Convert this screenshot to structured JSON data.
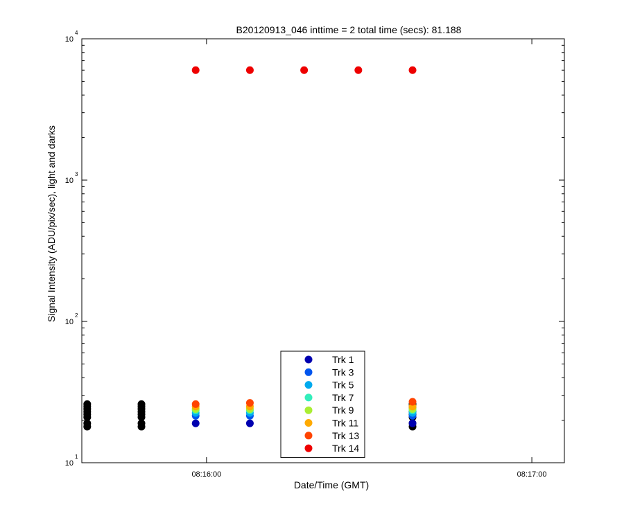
{
  "chart_data": {
    "type": "scatter",
    "title": "B20120913_046 inttime = 2 total time (secs): 81.188",
    "xlabel": "Date/Time (GMT)",
    "ylabel": "Signal Intensity (ADU/pix/sec), light and darks",
    "y_scale": "log",
    "ylim": [
      10,
      10000
    ],
    "xlim": [
      "08:15:37",
      "08:17:06"
    ],
    "grid": false,
    "legend_position": "bottom-center",
    "y_ticks": [
      {
        "value": 10,
        "base": "10",
        "exp": "1"
      },
      {
        "value": 100,
        "base": "10",
        "exp": "2"
      },
      {
        "value": 1000,
        "base": "10",
        "exp": "3"
      },
      {
        "value": 10000,
        "base": "10",
        "exp": "4"
      }
    ],
    "x_ticks": [
      {
        "value": "08:16:00",
        "label": "08:16:00"
      },
      {
        "value": "08:17:00",
        "label": "08:17:00"
      }
    ],
    "dark_series": {
      "color": "#000000",
      "times": [
        "08:15:38",
        "08:15:48",
        "08:16:28",
        "08:16:38"
      ],
      "values": [
        18,
        19,
        21,
        22,
        23,
        24,
        25,
        26
      ]
    },
    "light_times": [
      "08:15:58",
      "08:16:08",
      "08:16:18",
      "08:16:28",
      "08:16:38"
    ],
    "series": [
      {
        "name": "Trk 1",
        "color": "#0000b0",
        "values": [
          19,
          19,
          19,
          19,
          19
        ]
      },
      {
        "name": "Trk 3",
        "color": "#0055ee",
        "values": [
          21.5,
          21.5,
          21.5,
          21.5,
          21.5
        ]
      },
      {
        "name": "Trk 5",
        "color": "#00aaee",
        "values": [
          22.5,
          22.5,
          22.5,
          22.5,
          22.5
        ]
      },
      {
        "name": "Trk 7",
        "color": "#33eebb",
        "values": [
          23.5,
          23.5,
          23.5,
          23.5,
          23.5
        ]
      },
      {
        "name": "Trk 9",
        "color": "#aaee33",
        "values": [
          24,
          24,
          24,
          24,
          24
        ]
      },
      {
        "name": "Trk 11",
        "color": "#ffaa00",
        "values": [
          25,
          25,
          25,
          25,
          25
        ]
      },
      {
        "name": "Trk 13",
        "color": "#ff4400",
        "values": [
          26,
          26.5,
          26.5,
          26.5,
          27
        ]
      },
      {
        "name": "Trk 14",
        "color": "#ee0000",
        "values": [
          6000,
          6000,
          6000,
          6000,
          6000
        ]
      }
    ]
  }
}
